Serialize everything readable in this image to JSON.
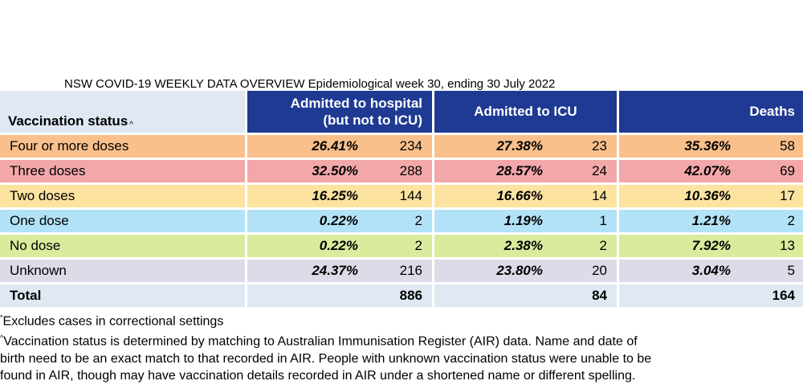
{
  "title": "NSW COVID-19 WEEKLY DATA OVERVIEW Epidemiological week 30, ending 30 July 2022",
  "headers": {
    "vaccination_status": "Vaccination status",
    "vaccination_status_mark": "^",
    "hospital_line1": "Admitted to hospital",
    "hospital_line2": "(but not to ICU)",
    "icu": "Admitted to ICU",
    "deaths": "Deaths"
  },
  "rows": [
    {
      "label": "Four or more doses",
      "hosp_pct": "26.41%",
      "hosp_n": "234",
      "icu_pct": "27.38%",
      "icu_n": "23",
      "death_pct": "35.36%",
      "death_n": "58"
    },
    {
      "label": "Three doses",
      "hosp_pct": "32.50%",
      "hosp_n": "288",
      "icu_pct": "28.57%",
      "icu_n": "24",
      "death_pct": "42.07%",
      "death_n": "69"
    },
    {
      "label": "Two doses",
      "hosp_pct": "16.25%",
      "hosp_n": "144",
      "icu_pct": "16.66%",
      "icu_n": "14",
      "death_pct": "10.36%",
      "death_n": "17"
    },
    {
      "label": "One dose",
      "hosp_pct": "0.22%",
      "hosp_n": "2",
      "icu_pct": "1.19%",
      "icu_n": "1",
      "death_pct": "1.21%",
      "death_n": "2"
    },
    {
      "label": "No dose",
      "hosp_pct": "0.22%",
      "hosp_n": "2",
      "icu_pct": "2.38%",
      "icu_n": "2",
      "death_pct": "7.92%",
      "death_n": "13"
    },
    {
      "label": "Unknown",
      "hosp_pct": "24.37%",
      "hosp_n": "216",
      "icu_pct": "23.80%",
      "icu_n": "20",
      "death_pct": "3.04%",
      "death_n": "5"
    }
  ],
  "total": {
    "label": "Total",
    "hosp_n": "886",
    "icu_n": "84",
    "death_n": "164"
  },
  "notes": {
    "note1_mark": "*",
    "note1": "Excludes cases in correctional settings",
    "note2_mark": "^",
    "note2_line1": "Vaccination status is determined by matching to Australian Immunisation Register (AIR) data. Name and date of",
    "note2_line2": "birth need to be an exact match to that recorded in AIR. People with unknown vaccination status were unable to be",
    "note2_line3": "found in AIR, though may have vaccination details recorded in AIR under a shortened name or different spelling."
  },
  "colors": {
    "header": "#1f3a93",
    "four_or_more": "#f9c08c",
    "three": "#f2a7a9",
    "two": "#fde3a0",
    "one": "#b2e2f7",
    "none": "#d9ec9d",
    "unknown": "#dcdce8",
    "total": "#dfe8f3"
  }
}
